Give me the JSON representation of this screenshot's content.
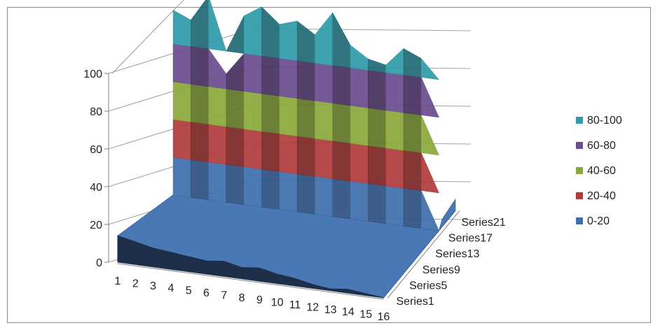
{
  "chart_data": {
    "type": "surface",
    "view": "3d",
    "x_categories": [
      "1",
      "2",
      "3",
      "4",
      "5",
      "6",
      "7",
      "8",
      "9",
      "10",
      "11",
      "12",
      "13",
      "14",
      "15",
      "16"
    ],
    "series_labels_shown": [
      "Series1",
      "Series5",
      "Series9",
      "Series13",
      "Series17",
      "Series21"
    ],
    "series_count": 23,
    "zlim": [
      0,
      100
    ],
    "z_ticks": [
      "0",
      "20",
      "40",
      "60",
      "80",
      "100"
    ],
    "back_series_index": 17,
    "front_surface_values": [
      14,
      12,
      10,
      9,
      8,
      7,
      8,
      6,
      7,
      5,
      4,
      2,
      1,
      2,
      1,
      0
    ],
    "wall_values": [
      98,
      94,
      108,
      68,
      100,
      106,
      98,
      101,
      95,
      108,
      92,
      86,
      84,
      94,
      90,
      0
    ],
    "legend": [
      {
        "label": "80-100",
        "color": "#2f9aa8"
      },
      {
        "label": "60-80",
        "color": "#6a4c8e"
      },
      {
        "label": "40-60",
        "color": "#8aa83a"
      },
      {
        "label": "20-40",
        "color": "#b03a3a"
      },
      {
        "label": "0-20",
        "color": "#3f6fae"
      }
    ],
    "legend_position": "right",
    "grid": true
  }
}
